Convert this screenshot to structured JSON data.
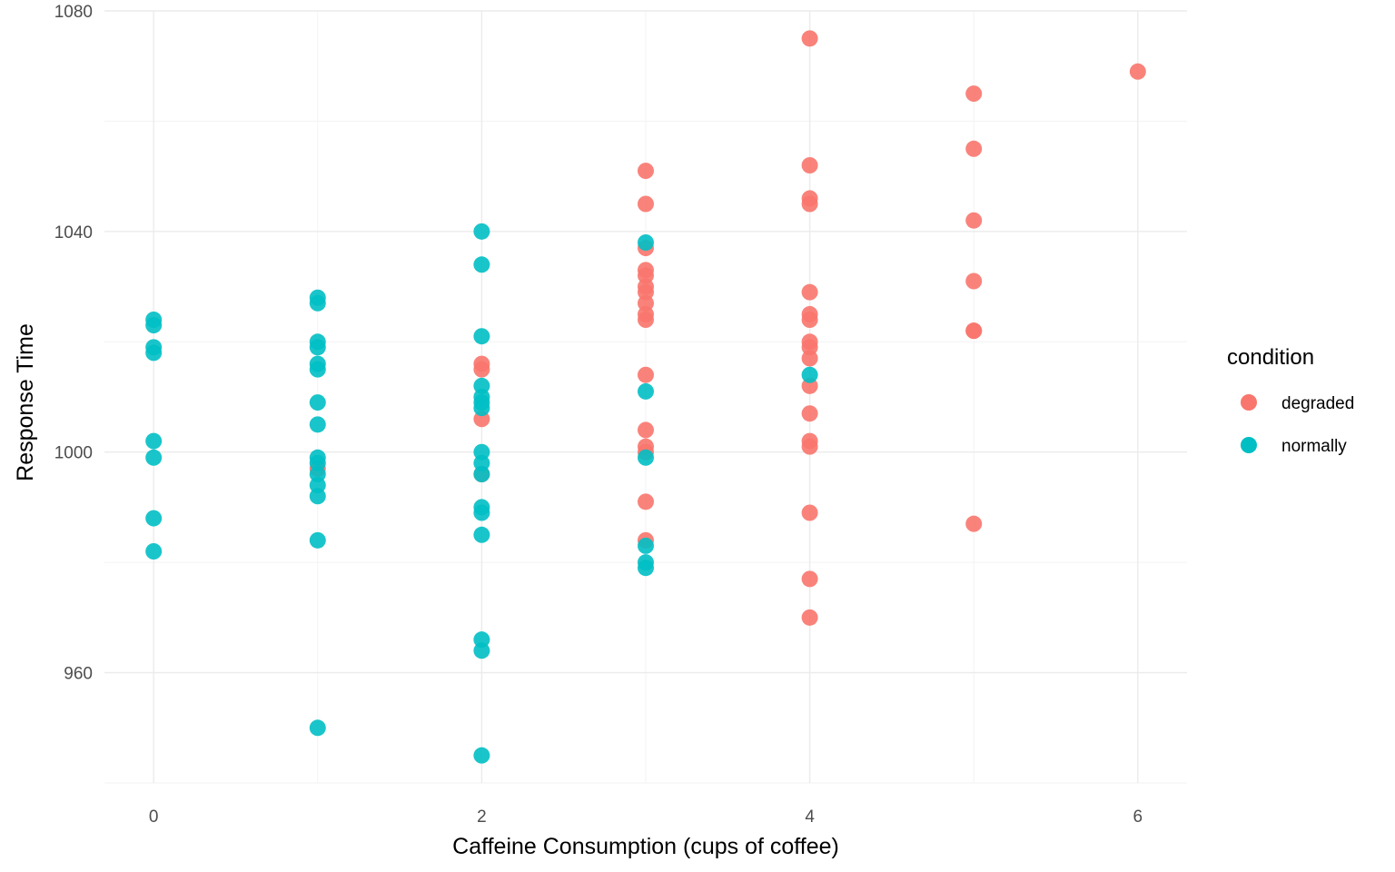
{
  "chart_data": {
    "type": "scatter",
    "xlabel": "Caffeine Consumption (cups of coffee)",
    "ylabel": "Response Time",
    "xlim": [
      -0.3,
      6.3
    ],
    "ylim": [
      940,
      1080
    ],
    "x_ticks": [
      0,
      2,
      4,
      6
    ],
    "y_ticks": [
      960,
      1000,
      1040,
      1080
    ],
    "x_ticks_labels": [
      "0",
      "2",
      "4",
      "6"
    ],
    "y_ticks_labels": [
      "960",
      "1000",
      "1040",
      "1080"
    ],
    "grid": true,
    "legend": {
      "title": "condition",
      "position": "right"
    },
    "series": [
      {
        "name": "degraded",
        "color": "#F8766D",
        "points": [
          [
            1,
            997
          ],
          [
            2,
            1016
          ],
          [
            2,
            1015
          ],
          [
            2,
            1006
          ],
          [
            2,
            996
          ],
          [
            3,
            1051
          ],
          [
            3,
            1045
          ],
          [
            3,
            1037
          ],
          [
            3,
            1033
          ],
          [
            3,
            1032
          ],
          [
            3,
            1030
          ],
          [
            3,
            1029
          ],
          [
            3,
            1027
          ],
          [
            3,
            1025
          ],
          [
            3,
            1024
          ],
          [
            3,
            1014
          ],
          [
            3,
            1004
          ],
          [
            3,
            1001
          ],
          [
            3,
            1000
          ],
          [
            3,
            991
          ],
          [
            3,
            984
          ],
          [
            4,
            1075
          ],
          [
            4,
            1052
          ],
          [
            4,
            1046
          ],
          [
            4,
            1045
          ],
          [
            4,
            1029
          ],
          [
            4,
            1025
          ],
          [
            4,
            1024
          ],
          [
            4,
            1020
          ],
          [
            4,
            1019
          ],
          [
            4,
            1017
          ],
          [
            4,
            1012
          ],
          [
            4,
            1007
          ],
          [
            4,
            1002
          ],
          [
            4,
            1001
          ],
          [
            4,
            989
          ],
          [
            4,
            977
          ],
          [
            4,
            970
          ],
          [
            5,
            1065
          ],
          [
            5,
            1055
          ],
          [
            5,
            1042
          ],
          [
            5,
            1031
          ],
          [
            5,
            1022
          ],
          [
            5,
            1022
          ],
          [
            5,
            987
          ],
          [
            6,
            1069
          ]
        ]
      },
      {
        "name": "normally",
        "color": "#00BFC4",
        "points": [
          [
            0,
            1024
          ],
          [
            0,
            1023
          ],
          [
            0,
            1019
          ],
          [
            0,
            1018
          ],
          [
            0,
            1002
          ],
          [
            0,
            999
          ],
          [
            0,
            988
          ],
          [
            0,
            982
          ],
          [
            1,
            1028
          ],
          [
            1,
            1027
          ],
          [
            1,
            1020
          ],
          [
            1,
            1019
          ],
          [
            1,
            1016
          ],
          [
            1,
            1015
          ],
          [
            1,
            1009
          ],
          [
            1,
            1005
          ],
          [
            1,
            999
          ],
          [
            1,
            998
          ],
          [
            1,
            996
          ],
          [
            1,
            994
          ],
          [
            1,
            992
          ],
          [
            1,
            984
          ],
          [
            1,
            950
          ],
          [
            2,
            1040
          ],
          [
            2,
            1034
          ],
          [
            2,
            1021
          ],
          [
            2,
            1012
          ],
          [
            2,
            1010
          ],
          [
            2,
            1009
          ],
          [
            2,
            1008
          ],
          [
            2,
            1000
          ],
          [
            2,
            998
          ],
          [
            2,
            996
          ],
          [
            2,
            990
          ],
          [
            2,
            989
          ],
          [
            2,
            985
          ],
          [
            2,
            966
          ],
          [
            2,
            964
          ],
          [
            2,
            945
          ],
          [
            3,
            1038
          ],
          [
            3,
            1011
          ],
          [
            3,
            999
          ],
          [
            3,
            983
          ],
          [
            3,
            980
          ],
          [
            3,
            979
          ],
          [
            4,
            1014
          ]
        ]
      }
    ]
  }
}
